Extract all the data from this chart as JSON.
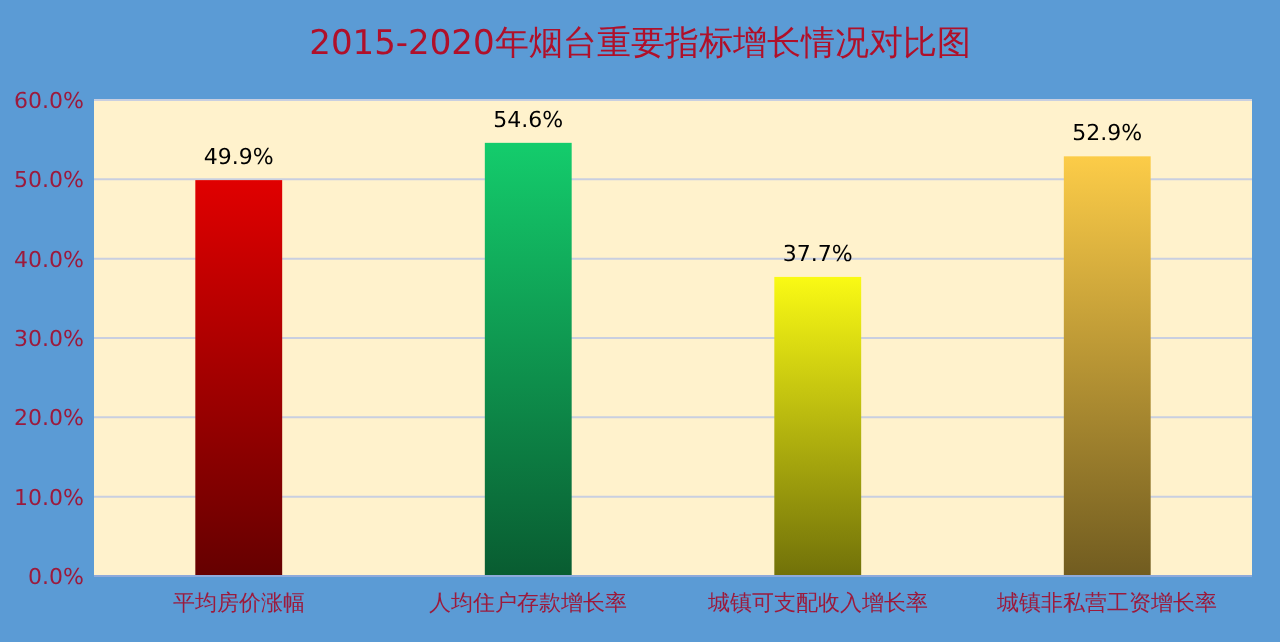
{
  "chart_data": {
    "type": "bar",
    "title": "2015-2020年烟台重要指标增长情况对比图",
    "categories": [
      "平均房价涨幅",
      "人均住户存款增长率",
      "城镇可支配收入增长率",
      "城镇非私营工资增长率"
    ],
    "values": [
      49.9,
      54.6,
      37.7,
      52.9
    ],
    "colors": [
      "#e00000",
      "#14cc6c",
      "#fafa14",
      "#fccc48"
    ],
    "value_labels": [
      "49.9%",
      "54.6%",
      "37.7%",
      "52.9%"
    ],
    "ylim": [
      0,
      60
    ],
    "yticks": [
      {
        "value": 0,
        "label": "0.0%"
      },
      {
        "value": 10,
        "label": "10.0%"
      },
      {
        "value": 20,
        "label": "20.0%"
      },
      {
        "value": 30,
        "label": "30.0%"
      },
      {
        "value": 40,
        "label": "40.0%"
      },
      {
        "value": 50,
        "label": "50.0%"
      },
      {
        "value": 60,
        "label": "60.0%"
      }
    ],
    "grid": "y"
  }
}
